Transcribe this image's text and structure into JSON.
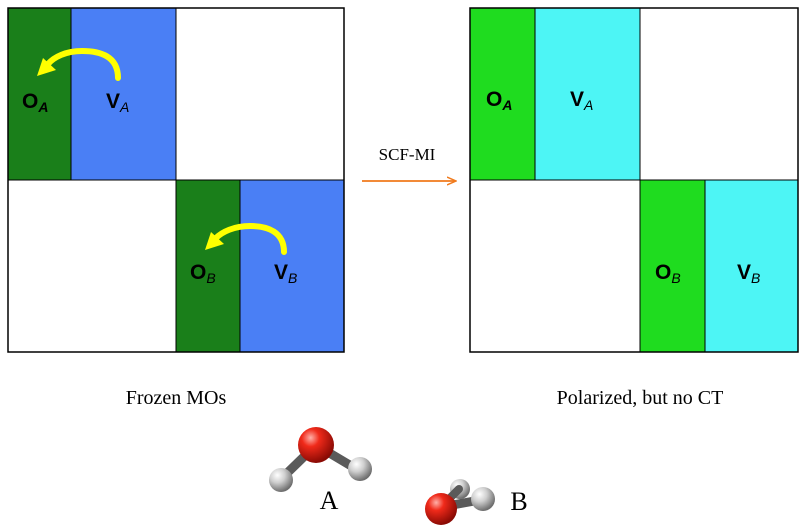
{
  "left_panel": {
    "caption": "Frozen MOs",
    "block_a": {
      "occ_letter": "O",
      "occ_sub": "A",
      "virt_letter": "V",
      "virt_sub": "A"
    },
    "block_b": {
      "occ_letter": "O",
      "occ_sub": "B",
      "virt_letter": "V",
      "virt_sub": "B"
    },
    "colors": {
      "occupied": "#1a7f1a",
      "virtual": "#4a7ff5",
      "arrow": "#ffff00"
    }
  },
  "arrow_label": "SCF-MI",
  "arrow_color": "#f07a1c",
  "right_panel": {
    "caption": "Polarized, but no CT",
    "block_a": {
      "occ_letter": "O",
      "occ_sub": "A",
      "virt_letter": "V",
      "virt_sub": "A"
    },
    "block_b": {
      "occ_letter": "O",
      "occ_sub": "B",
      "virt_letter": "V",
      "virt_sub": "B"
    },
    "colors": {
      "occupied": "#1fdc1f",
      "virtual": "#4df5f5"
    }
  },
  "molecules": {
    "label_a": "A",
    "label_b": "B",
    "colors": {
      "oxygen": "#e31b0e",
      "hydrogen": "#c8c8c8"
    }
  }
}
